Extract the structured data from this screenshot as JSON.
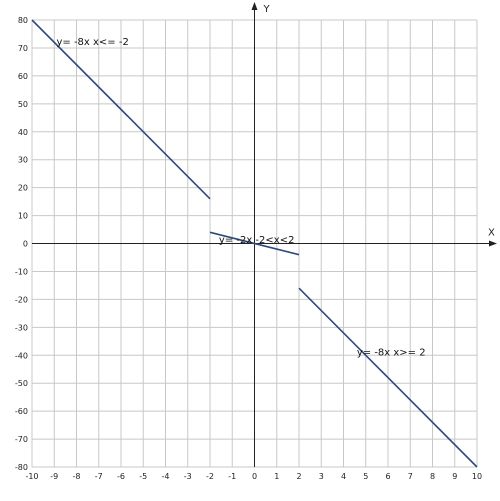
{
  "chart_data": {
    "type": "line",
    "xlabel": "X",
    "ylabel": "Y",
    "xlim": [
      -10,
      10
    ],
    "ylim": [
      -80,
      80
    ],
    "x_ticks": [
      -10,
      -9,
      -8,
      -7,
      -6,
      -5,
      -4,
      -3,
      -2,
      -1,
      0,
      1,
      2,
      3,
      4,
      5,
      6,
      7,
      8,
      9,
      10
    ],
    "y_ticks": [
      80,
      70,
      60,
      50,
      40,
      30,
      20,
      10,
      0,
      -10,
      -20,
      -30,
      -40,
      -50,
      -60,
      -70,
      -80
    ],
    "grid": true,
    "line_color": "#2f4b7c",
    "grid_color": "#c8c8c8",
    "series": [
      {
        "points": [
          [
            -10,
            80
          ],
          [
            -2,
            16
          ]
        ]
      },
      {
        "points": [
          [
            -2,
            4
          ],
          [
            2,
            -4
          ]
        ]
      },
      {
        "points": [
          [
            2,
            -16
          ],
          [
            10,
            -80
          ]
        ]
      }
    ],
    "annotations": [
      {
        "text": "y= -8x  x<= -2",
        "x": -8.9,
        "y": 71
      },
      {
        "text": "y= -2x  -2<x<2",
        "x": -1.6,
        "y": 0.2
      },
      {
        "text": "y= -8x  x>= 2",
        "x": 4.6,
        "y": -40
      }
    ]
  }
}
